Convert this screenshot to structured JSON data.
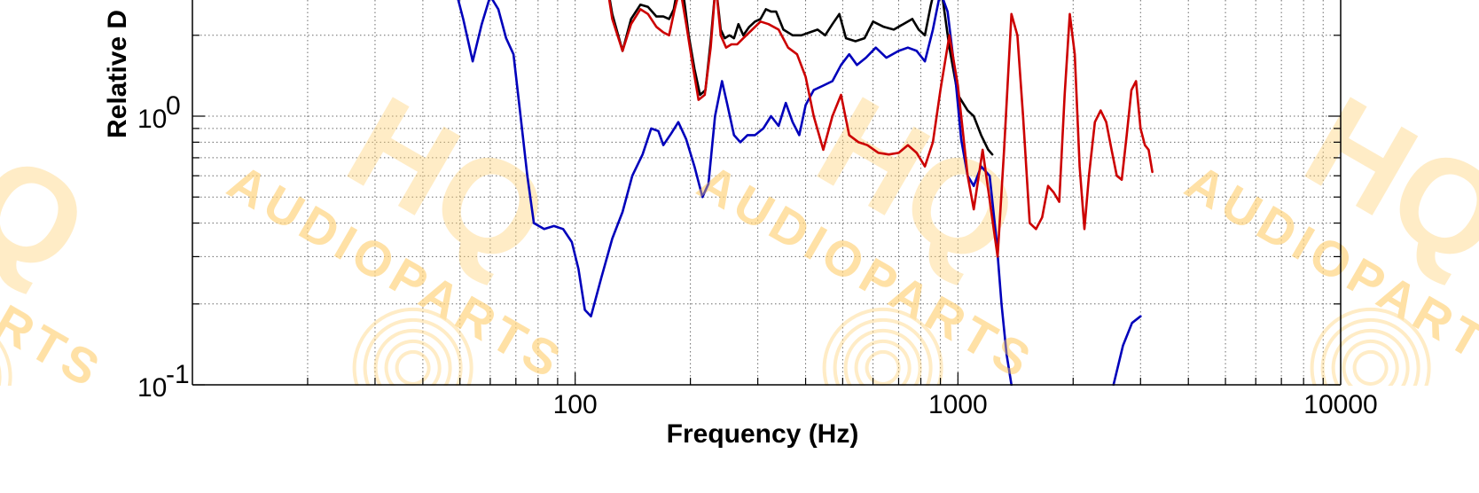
{
  "chart_data": {
    "type": "line",
    "title": "",
    "xlabel": "Frequency (Hz)",
    "ylabel": "Relative D",
    "xscale": "log",
    "yscale": "log",
    "xlim": [
      10,
      10000
    ],
    "ylim": [
      0.1,
      3.6
    ],
    "grid": true,
    "grid_style": "dotted",
    "x_tick_labels": [
      "100",
      "1000",
      "10000"
    ],
    "y_tick_labels": [
      {
        "base": "10",
        "exp": "0"
      },
      {
        "base": "10",
        "exp": "-1"
      }
    ],
    "series": [
      {
        "color": "#000000",
        "points": [
          [
            119,
            3.6
          ],
          [
            125,
            2.4
          ],
          [
            133,
            1.75
          ],
          [
            140,
            2.3
          ],
          [
            148,
            2.6
          ],
          [
            155,
            2.55
          ],
          [
            163,
            2.35
          ],
          [
            170,
            2.35
          ],
          [
            176,
            2.3
          ],
          [
            181,
            2.5
          ],
          [
            186,
            3.1
          ],
          [
            192,
            2.8
          ],
          [
            198,
            2.0
          ],
          [
            205,
            1.5
          ],
          [
            212,
            1.2
          ],
          [
            219,
            1.25
          ],
          [
            226,
            1.9
          ],
          [
            233,
            3.1
          ],
          [
            240,
            2.1
          ],
          [
            246,
            1.95
          ],
          [
            253,
            2.0
          ],
          [
            260,
            1.95
          ],
          [
            267,
            2.2
          ],
          [
            275,
            2.0
          ],
          [
            285,
            2.15
          ],
          [
            295,
            2.25
          ],
          [
            305,
            2.3
          ],
          [
            315,
            2.5
          ],
          [
            325,
            2.45
          ],
          [
            335,
            2.45
          ],
          [
            350,
            2.1
          ],
          [
            370,
            2.0
          ],
          [
            390,
            2.0
          ],
          [
            410,
            2.05
          ],
          [
            430,
            2.1
          ],
          [
            450,
            2.0
          ],
          [
            470,
            2.2
          ],
          [
            490,
            2.4
          ],
          [
            510,
            1.95
          ],
          [
            540,
            1.9
          ],
          [
            570,
            1.95
          ],
          [
            600,
            2.25
          ],
          [
            640,
            2.15
          ],
          [
            680,
            2.1
          ],
          [
            720,
            2.2
          ],
          [
            760,
            2.3
          ],
          [
            790,
            2.1
          ],
          [
            820,
            2.0
          ],
          [
            850,
            2.6
          ],
          [
            880,
            3.2
          ],
          [
            910,
            2.8
          ],
          [
            950,
            1.8
          ],
          [
            1000,
            1.2
          ],
          [
            1060,
            1.05
          ],
          [
            1100,
            1.0
          ],
          [
            1150,
            0.85
          ],
          [
            1200,
            0.75
          ],
          [
            1230,
            0.72
          ]
        ]
      },
      {
        "color": "#0000bb",
        "points": [
          [
            47,
            3.6
          ],
          [
            51,
            2.3
          ],
          [
            54,
            1.6
          ],
          [
            57,
            2.2
          ],
          [
            60,
            2.8
          ],
          [
            63,
            2.5
          ],
          [
            66,
            1.95
          ],
          [
            69,
            1.7
          ],
          [
            72,
            1.0
          ],
          [
            75,
            0.6
          ],
          [
            78,
            0.4
          ],
          [
            83,
            0.38
          ],
          [
            88,
            0.39
          ],
          [
            93,
            0.38
          ],
          [
            98,
            0.34
          ],
          [
            102,
            0.27
          ],
          [
            106,
            0.19
          ],
          [
            110,
            0.18
          ],
          [
            117,
            0.25
          ],
          [
            125,
            0.35
          ],
          [
            133,
            0.44
          ],
          [
            141,
            0.6
          ],
          [
            150,
            0.72
          ],
          [
            158,
            0.9
          ],
          [
            165,
            0.88
          ],
          [
            170,
            0.78
          ],
          [
            178,
            0.86
          ],
          [
            186,
            0.95
          ],
          [
            195,
            0.82
          ],
          [
            205,
            0.65
          ],
          [
            215,
            0.5
          ],
          [
            223,
            0.56
          ],
          [
            232,
            1.0
          ],
          [
            242,
            1.35
          ],
          [
            250,
            1.1
          ],
          [
            260,
            0.85
          ],
          [
            270,
            0.8
          ],
          [
            282,
            0.85
          ],
          [
            295,
            0.85
          ],
          [
            310,
            0.9
          ],
          [
            325,
            1.0
          ],
          [
            340,
            0.92
          ],
          [
            355,
            1.12
          ],
          [
            370,
            0.95
          ],
          [
            385,
            0.85
          ],
          [
            400,
            1.1
          ],
          [
            420,
            1.25
          ],
          [
            445,
            1.3
          ],
          [
            470,
            1.35
          ],
          [
            495,
            1.55
          ],
          [
            520,
            1.7
          ],
          [
            545,
            1.55
          ],
          [
            575,
            1.65
          ],
          [
            610,
            1.8
          ],
          [
            650,
            1.65
          ],
          [
            700,
            1.75
          ],
          [
            740,
            1.8
          ],
          [
            780,
            1.75
          ],
          [
            820,
            1.6
          ],
          [
            860,
            2.1
          ],
          [
            900,
            2.9
          ],
          [
            940,
            2.45
          ],
          [
            980,
            1.5
          ],
          [
            1020,
            0.82
          ],
          [
            1060,
            0.6
          ],
          [
            1100,
            0.55
          ],
          [
            1150,
            0.65
          ],
          [
            1210,
            0.6
          ],
          [
            1260,
            0.35
          ],
          [
            1300,
            0.2
          ],
          [
            1340,
            0.13
          ],
          [
            1380,
            0.1
          ]
        ]
      },
      {
        "color": "#0000bb",
        "points": [
          [
            2550,
            0.1
          ],
          [
            2700,
            0.14
          ],
          [
            2850,
            0.17
          ],
          [
            3000,
            0.18
          ]
        ]
      },
      {
        "color": "#cc0000",
        "points": [
          [
            119,
            3.6
          ],
          [
            125,
            2.3
          ],
          [
            133,
            1.75
          ],
          [
            140,
            2.2
          ],
          [
            148,
            2.5
          ],
          [
            155,
            2.4
          ],
          [
            163,
            2.15
          ],
          [
            170,
            2.05
          ],
          [
            176,
            2.0
          ],
          [
            182,
            2.5
          ],
          [
            188,
            3.0
          ],
          [
            195,
            2.2
          ],
          [
            202,
            1.6
          ],
          [
            210,
            1.15
          ],
          [
            218,
            1.2
          ],
          [
            226,
            1.8
          ],
          [
            233,
            3.1
          ],
          [
            240,
            2.0
          ],
          [
            248,
            1.8
          ],
          [
            256,
            1.85
          ],
          [
            265,
            1.85
          ],
          [
            275,
            1.95
          ],
          [
            290,
            2.1
          ],
          [
            305,
            2.25
          ],
          [
            320,
            2.2
          ],
          [
            340,
            2.1
          ],
          [
            360,
            1.8
          ],
          [
            380,
            1.7
          ],
          [
            400,
            1.4
          ],
          [
            420,
            1.0
          ],
          [
            445,
            0.75
          ],
          [
            470,
            1.0
          ],
          [
            495,
            1.2
          ],
          [
            520,
            0.85
          ],
          [
            550,
            0.8
          ],
          [
            580,
            0.78
          ],
          [
            620,
            0.73
          ],
          [
            660,
            0.72
          ],
          [
            700,
            0.73
          ],
          [
            740,
            0.78
          ],
          [
            780,
            0.73
          ],
          [
            820,
            0.65
          ],
          [
            860,
            0.8
          ],
          [
            900,
            1.25
          ],
          [
            950,
            2.0
          ],
          [
            1000,
            1.3
          ],
          [
            1060,
            0.6
          ],
          [
            1100,
            0.45
          ],
          [
            1160,
            0.75
          ],
          [
            1220,
            0.45
          ],
          [
            1270,
            0.3
          ],
          [
            1320,
            0.75
          ],
          [
            1380,
            2.4
          ],
          [
            1430,
            2.0
          ],
          [
            1480,
            1.0
          ],
          [
            1540,
            0.4
          ],
          [
            1600,
            0.38
          ],
          [
            1660,
            0.42
          ],
          [
            1720,
            0.55
          ],
          [
            1780,
            0.52
          ],
          [
            1840,
            0.48
          ],
          [
            1900,
            1.2
          ],
          [
            1960,
            2.4
          ],
          [
            2020,
            1.7
          ],
          [
            2080,
            0.65
          ],
          [
            2140,
            0.38
          ],
          [
            2200,
            0.6
          ],
          [
            2280,
            0.95
          ],
          [
            2360,
            1.05
          ],
          [
            2440,
            0.95
          ],
          [
            2520,
            0.75
          ],
          [
            2600,
            0.6
          ],
          [
            2680,
            0.58
          ],
          [
            2760,
            0.85
          ],
          [
            2840,
            1.25
          ],
          [
            2920,
            1.35
          ],
          [
            3000,
            0.9
          ],
          [
            3080,
            0.78
          ],
          [
            3150,
            0.75
          ],
          [
            3220,
            0.62
          ]
        ]
      }
    ]
  }
}
